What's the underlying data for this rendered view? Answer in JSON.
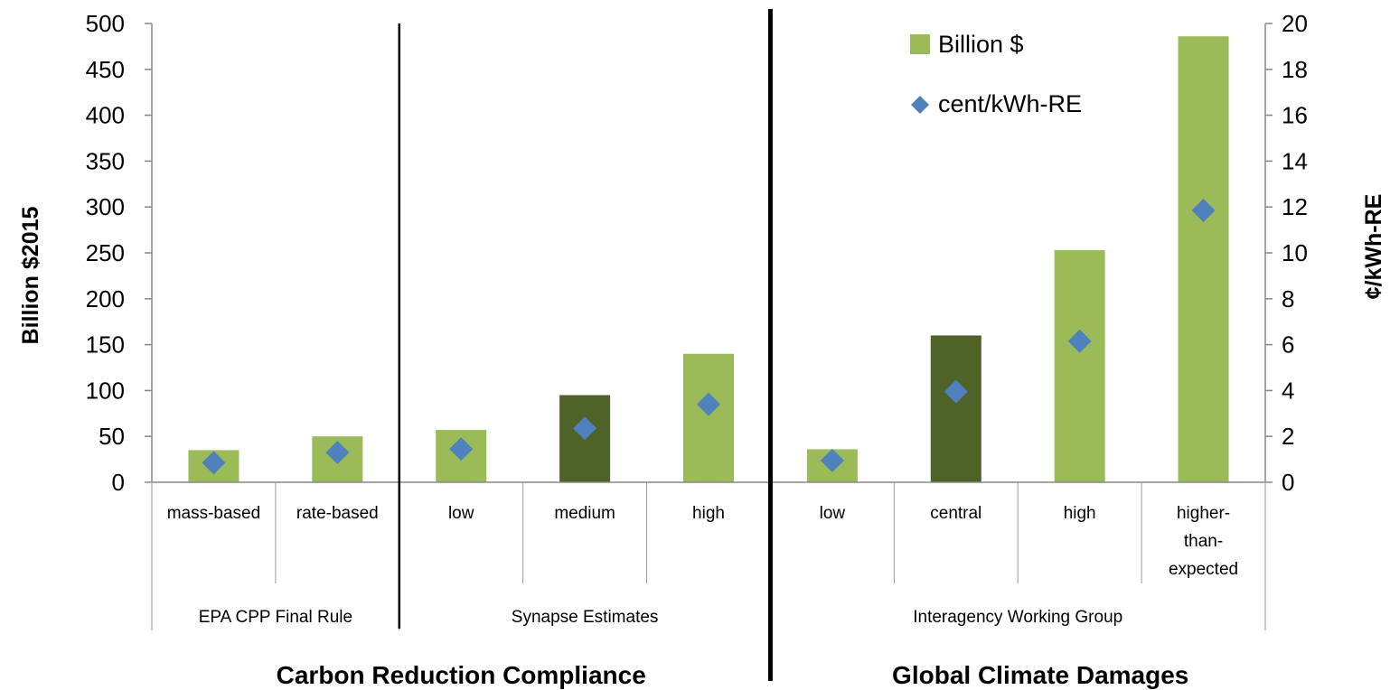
{
  "chart_data": {
    "type": "bar",
    "left_axis": {
      "label": "Billion $2015",
      "range": [
        0,
        500
      ],
      "ticks": [
        "0",
        "50",
        "100",
        "150",
        "200",
        "250",
        "300",
        "350",
        "400",
        "450",
        "500"
      ]
    },
    "right_axis": {
      "label": "¢/kWh-RE",
      "range": [
        0,
        20
      ],
      "ticks": [
        "0",
        "2",
        "4",
        "6",
        "8",
        "10",
        "12",
        "14",
        "16",
        "18",
        "20"
      ]
    },
    "categories": [
      {
        "label": [
          "mass-based"
        ],
        "group": "EPA CPP Final Rule"
      },
      {
        "label": [
          "rate-based"
        ],
        "group": "EPA CPP Final Rule"
      },
      {
        "label": [
          "low"
        ],
        "group": "Synapse Estimates"
      },
      {
        "label": [
          "medium"
        ],
        "group": "Synapse Estimates"
      },
      {
        "label": [
          "high"
        ],
        "group": "Synapse Estimates"
      },
      {
        "label": [
          "low"
        ],
        "group": "Interagency Working Group"
      },
      {
        "label": [
          "central"
        ],
        "group": "Interagency Working Group"
      },
      {
        "label": [
          "high"
        ],
        "group": "Interagency Working Group"
      },
      {
        "label": [
          "higher-",
          "than-",
          "expected"
        ],
        "group": "Interagency Working Group"
      }
    ],
    "groups": [
      "EPA CPP Final Rule",
      "Synapse Estimates",
      "Interagency Working Group"
    ],
    "sections": [
      "Carbon Reduction Compliance",
      "Global Climate Damages"
    ],
    "series": [
      {
        "name": "Billion $",
        "kind": "bar",
        "axis": "left",
        "values": [
          35,
          50,
          57,
          95,
          140,
          36,
          160,
          253,
          486
        ],
        "colors": [
          "#9BBB59",
          "#9BBB59",
          "#9BBB59",
          "#4F6228",
          "#9BBB59",
          "#9BBB59",
          "#4F6228",
          "#9BBB59",
          "#9BBB59"
        ]
      },
      {
        "name": "cent/kWh-RE",
        "kind": "scatter",
        "axis": "right",
        "marker": "diamond",
        "color": "#4F81BD",
        "values": [
          0.85,
          1.3,
          1.45,
          2.35,
          3.4,
          0.95,
          3.95,
          6.15,
          11.85
        ]
      }
    ],
    "legend_position": "top-right",
    "grid": false
  }
}
